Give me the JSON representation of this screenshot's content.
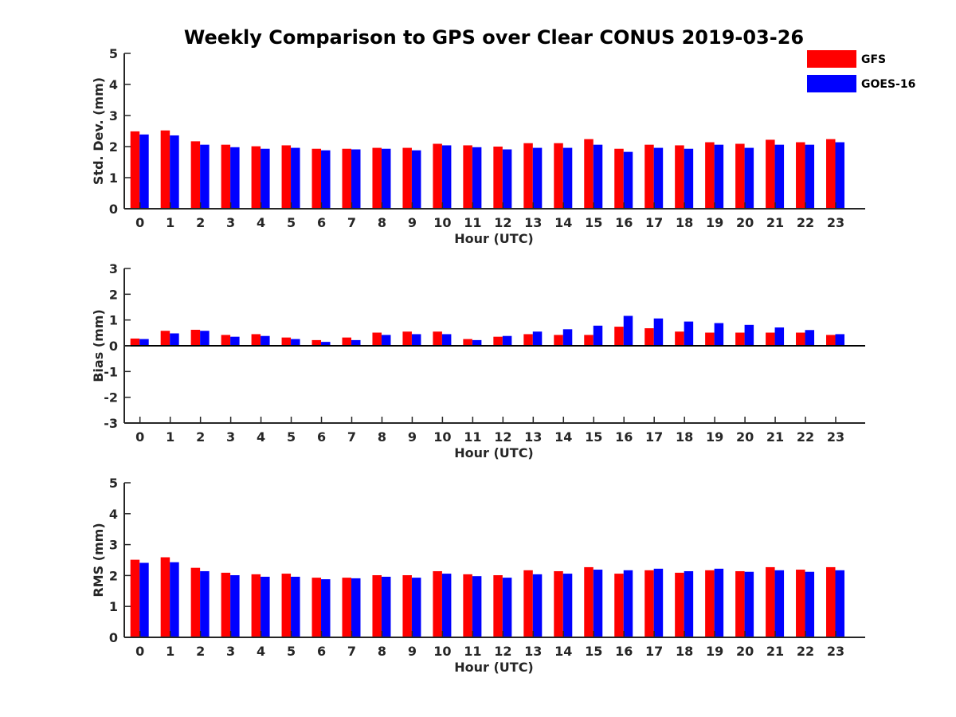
{
  "title": "Weekly Comparison to GPS over Clear CONUS 2019-03-26",
  "legend": [
    {
      "name": "GFS",
      "color": "#ff0000"
    },
    {
      "name": "GOES-16",
      "color": "#0000ff"
    }
  ],
  "chart_data": [
    {
      "type": "bar",
      "xlabel": "Hour (UTC)",
      "ylabel": "Std. Dev. (mm)",
      "ylim": [
        0,
        5
      ],
      "yticks": [
        0,
        1,
        2,
        3,
        4,
        5
      ],
      "categories": [
        "0",
        "1",
        "2",
        "3",
        "4",
        "5",
        "6",
        "7",
        "8",
        "9",
        "10",
        "11",
        "12",
        "13",
        "14",
        "15",
        "16",
        "17",
        "18",
        "19",
        "20",
        "21",
        "22",
        "23"
      ],
      "series": [
        {
          "name": "GFS",
          "values": [
            2.49,
            2.52,
            2.17,
            2.06,
            2.01,
            2.04,
            1.93,
            1.93,
            1.96,
            1.96,
            2.09,
            2.04,
            2.0,
            2.11,
            2.11,
            2.24,
            1.93,
            2.06,
            2.04,
            2.14,
            2.09,
            2.22,
            2.14,
            2.24
          ]
        },
        {
          "name": "GOES-16",
          "values": [
            2.39,
            2.36,
            2.06,
            1.98,
            1.93,
            1.96,
            1.88,
            1.91,
            1.93,
            1.88,
            2.04,
            1.98,
            1.91,
            1.96,
            1.96,
            2.06,
            1.83,
            1.96,
            1.93,
            2.06,
            1.96,
            2.06,
            2.06,
            2.14
          ]
        }
      ]
    },
    {
      "type": "bar",
      "xlabel": "Hour (UTC)",
      "ylabel": "Bias (mm)",
      "ylim": [
        -3,
        3
      ],
      "yticks": [
        -3,
        -2,
        -1,
        0,
        1,
        2,
        3
      ],
      "categories": [
        "0",
        "1",
        "2",
        "3",
        "4",
        "5",
        "6",
        "7",
        "8",
        "9",
        "10",
        "11",
        "12",
        "13",
        "14",
        "15",
        "16",
        "17",
        "18",
        "19",
        "20",
        "21",
        "22",
        "23"
      ],
      "series": [
        {
          "name": "GFS",
          "values": [
            0.28,
            0.58,
            0.62,
            0.42,
            0.45,
            0.32,
            0.22,
            0.32,
            0.51,
            0.55,
            0.55,
            0.26,
            0.35,
            0.45,
            0.42,
            0.42,
            0.74,
            0.68,
            0.55,
            0.51,
            0.51,
            0.51,
            0.51,
            0.42
          ]
        },
        {
          "name": "GOES-16",
          "values": [
            0.26,
            0.48,
            0.58,
            0.35,
            0.38,
            0.26,
            0.15,
            0.22,
            0.42,
            0.45,
            0.45,
            0.22,
            0.38,
            0.55,
            0.64,
            0.78,
            1.16,
            1.06,
            0.94,
            0.88,
            0.81,
            0.71,
            0.61,
            0.45
          ]
        }
      ]
    },
    {
      "type": "bar",
      "xlabel": "Hour (UTC)",
      "ylabel": "RMS (mm)",
      "ylim": [
        0,
        5
      ],
      "yticks": [
        0,
        1,
        2,
        3,
        4,
        5
      ],
      "categories": [
        "0",
        "1",
        "2",
        "3",
        "4",
        "5",
        "6",
        "7",
        "8",
        "9",
        "10",
        "11",
        "12",
        "13",
        "14",
        "15",
        "16",
        "17",
        "18",
        "19",
        "20",
        "21",
        "22",
        "23"
      ],
      "series": [
        {
          "name": "GFS",
          "values": [
            2.51,
            2.59,
            2.25,
            2.09,
            2.04,
            2.06,
            1.93,
            1.93,
            2.01,
            2.01,
            2.14,
            2.04,
            2.01,
            2.17,
            2.14,
            2.27,
            2.06,
            2.17,
            2.09,
            2.17,
            2.14,
            2.27,
            2.19,
            2.27
          ]
        },
        {
          "name": "GOES-16",
          "values": [
            2.41,
            2.43,
            2.14,
            2.01,
            1.96,
            1.96,
            1.88,
            1.91,
            1.96,
            1.93,
            2.06,
            1.98,
            1.93,
            2.04,
            2.06,
            2.19,
            2.17,
            2.22,
            2.14,
            2.22,
            2.12,
            2.17,
            2.12,
            2.17
          ]
        }
      ]
    }
  ]
}
